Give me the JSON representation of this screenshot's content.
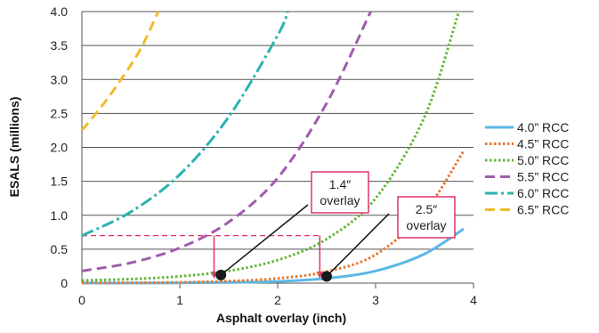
{
  "chart_data": {
    "type": "line",
    "xlabel": "Asphalt overlay (inch)",
    "ylabel": "ESALS (millions)",
    "xlim": [
      0,
      4
    ],
    "ylim": [
      0,
      4.0
    ],
    "xticks": [
      "0",
      "1",
      "2",
      "3",
      "4"
    ],
    "yticks": [
      "0",
      "0.5",
      "1.0",
      "1.5",
      "2.0",
      "2.5",
      "3.0",
      "3.5",
      "4.0"
    ],
    "grid": "horizontal",
    "legend_position": "right",
    "series": [
      {
        "name": "4.0” RCC",
        "color": "#5bb8e6",
        "dash": "solid",
        "x": [
          0,
          0.5,
          1.0,
          1.5,
          2.0,
          2.5,
          3.0,
          3.5,
          3.9
        ],
        "y": [
          0.001,
          0.002,
          0.004,
          0.01,
          0.025,
          0.07,
          0.18,
          0.43,
          0.8
        ]
      },
      {
        "name": "4.5” RCC",
        "color": "#e8772e",
        "dash": "dot",
        "x": [
          0,
          0.5,
          1.0,
          1.5,
          2.0,
          2.5,
          3.0,
          3.5,
          3.9
        ],
        "y": [
          0.002,
          0.005,
          0.012,
          0.03,
          0.07,
          0.17,
          0.42,
          1.05,
          1.95
        ]
      },
      {
        "name": "5.0” RCC",
        "color": "#64b63c",
        "dash": "dot",
        "x": [
          0,
          0.5,
          1.0,
          1.5,
          2.0,
          2.5,
          3.0,
          3.5,
          3.85
        ],
        "y": [
          0.04,
          0.06,
          0.1,
          0.18,
          0.34,
          0.65,
          1.25,
          2.45,
          4.0
        ]
      },
      {
        "name": "5.5” RCC",
        "color": "#a05cad",
        "dash": "dash",
        "x": [
          0,
          0.5,
          1.0,
          1.5,
          2.0,
          2.5,
          2.95
        ],
        "y": [
          0.18,
          0.3,
          0.52,
          0.9,
          1.55,
          2.65,
          4.0
        ]
      },
      {
        "name": "6.0” RCC",
        "color": "#2ab3ad",
        "dash": "dashdot",
        "x": [
          0,
          0.5,
          1.0,
          1.5,
          2.0,
          2.1
        ],
        "y": [
          0.7,
          1.05,
          1.6,
          2.45,
          3.65,
          4.0
        ]
      },
      {
        "name": "6.5” RCC",
        "color": "#f2bb2a",
        "dash": "dash",
        "x": [
          0,
          0.2,
          0.4,
          0.6,
          0.78
        ],
        "y": [
          2.25,
          2.6,
          3.0,
          3.45,
          4.0
        ]
      }
    ],
    "reference": {
      "y": 0.7,
      "color": "#e0336a"
    },
    "markers": [
      {
        "x": 1.42,
        "y": 0.12
      },
      {
        "x": 2.5,
        "y": 0.1
      }
    ],
    "annotations": [
      {
        "line1": "1.4″",
        "line2": "overlay"
      },
      {
        "line1": "2.5″",
        "line2": "overlay"
      }
    ]
  }
}
